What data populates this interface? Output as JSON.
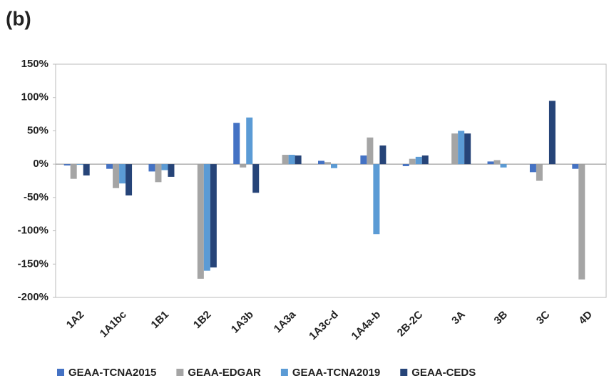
{
  "chart_data": {
    "type": "bar",
    "title": "(b)",
    "categories": [
      "1A2",
      "1A1bc",
      "1B1",
      "1B2",
      "1A3b",
      "1A3a",
      "1A3c-d",
      "1A4a-b",
      "2B-2C",
      "3A",
      "3B",
      "3C",
      "4D"
    ],
    "series": [
      {
        "name": "GEAA-TCNA2015",
        "color": "#4472c4",
        "values": [
          -2,
          -7,
          -11,
          0,
          62,
          0,
          5,
          13,
          -3,
          0,
          4,
          -12,
          -7
        ]
      },
      {
        "name": "GEAA-EDGAR",
        "color": "#a5a5a5",
        "values": [
          -22,
          -36,
          -27,
          -172,
          -5,
          14,
          3,
          40,
          8,
          46,
          6,
          -25,
          -173
        ]
      },
      {
        "name": "GEAA-TCNA2019",
        "color": "#5b9bd5",
        "values": [
          -1,
          -29,
          -9,
          -160,
          70,
          14,
          -6,
          -105,
          11,
          50,
          -5,
          0,
          0
        ]
      },
      {
        "name": "GEAA-CEDS",
        "color": "#264478",
        "values": [
          -17,
          -47,
          -19,
          -155,
          -43,
          13,
          0,
          28,
          13,
          46,
          0,
          95,
          0
        ]
      }
    ],
    "ylim": [
      -200,
      150
    ],
    "yticks": [
      {
        "value": -200,
        "label": "-200%"
      },
      {
        "value": -150,
        "label": "-150%"
      },
      {
        "value": -100,
        "label": "-100%"
      },
      {
        "value": -50,
        "label": "-50%"
      },
      {
        "value": 0,
        "label": "0%"
      },
      {
        "value": 50,
        "label": "50%"
      },
      {
        "value": 100,
        "label": "100%"
      },
      {
        "value": 150,
        "label": "150%"
      }
    ],
    "grid": false
  }
}
